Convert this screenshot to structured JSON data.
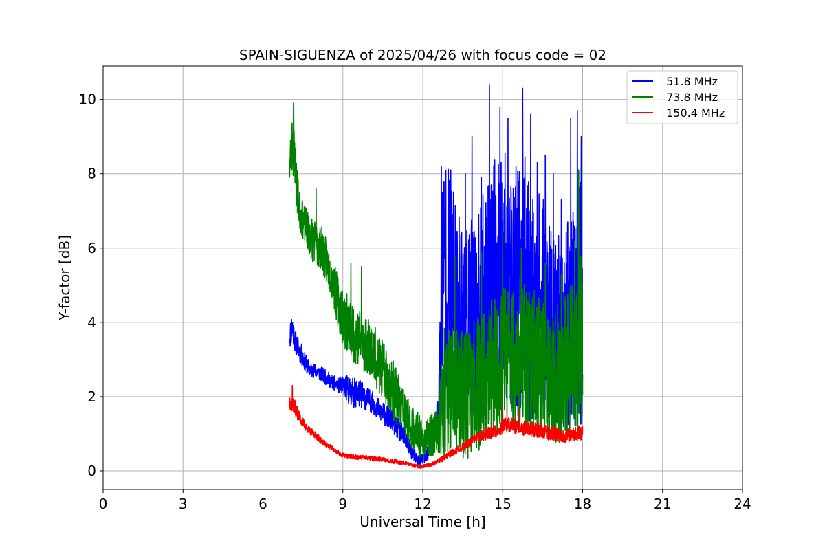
{
  "chart_data": {
    "type": "line",
    "title": "SPAIN-SIGUENZA of 2025/04/26 with focus code = 02",
    "xlabel": "Universal Time [h]",
    "ylabel": "Y-factor [dB]",
    "xlim": [
      0,
      24
    ],
    "ylim": [
      -0.5,
      10.9
    ],
    "xticks": [
      0,
      3,
      6,
      9,
      12,
      15,
      18,
      21,
      24
    ],
    "xtick_labels": [
      "0",
      "3",
      "6",
      "9",
      "12",
      "15",
      "18",
      "21",
      "24"
    ],
    "yticks": [
      0,
      2,
      4,
      6,
      8,
      10
    ],
    "ytick_labels": [
      "0",
      "2",
      "4",
      "6",
      "8",
      "10"
    ],
    "grid": true,
    "legend_position": "top-right",
    "series": [
      {
        "name": " 51.8 MHz",
        "color": "#0000ff",
        "x": [
          7.0,
          7.1,
          7.2,
          7.4,
          7.6,
          7.8,
          8.0,
          8.2,
          8.4,
          8.6,
          8.8,
          9.0,
          9.2,
          9.4,
          9.6,
          9.8,
          10.0,
          10.2,
          10.4,
          10.6,
          10.8,
          11.0,
          11.2,
          11.4,
          11.6,
          11.8,
          12.0,
          12.2,
          12.4,
          12.6,
          12.7,
          12.8,
          13.0,
          13.2,
          13.4,
          13.6,
          13.8,
          14.0,
          14.2,
          14.4,
          14.6,
          14.8,
          15.0,
          15.2,
          15.4,
          15.6,
          15.8,
          16.0,
          16.2,
          16.4,
          16.6,
          16.8,
          17.0,
          17.2,
          17.4,
          17.6,
          17.8,
          18.0
        ],
        "y": [
          3.6,
          3.9,
          3.5,
          3.2,
          2.9,
          2.7,
          2.7,
          2.6,
          2.5,
          2.4,
          2.3,
          2.3,
          2.2,
          2.1,
          2.1,
          2.0,
          1.9,
          1.8,
          1.6,
          1.5,
          1.4,
          1.2,
          1.0,
          0.8,
          0.5,
          0.3,
          0.3,
          0.5,
          1.0,
          1.6,
          5.0,
          5.5,
          5.2,
          4.6,
          4.4,
          4.0,
          4.2,
          3.9,
          4.3,
          4.6,
          4.8,
          5.1,
          5.5,
          5.0,
          4.6,
          4.9,
          5.3,
          4.5,
          4.3,
          4.7,
          4.4,
          3.9,
          3.8,
          3.7,
          3.9,
          4.2,
          4.6,
          4.3
        ],
        "amplitude": [
          0.3,
          0.5,
          0.3,
          0.3,
          0.25,
          0.2,
          0.2,
          0.2,
          0.2,
          0.2,
          0.2,
          0.25,
          0.4,
          0.4,
          0.4,
          0.35,
          0.3,
          0.3,
          0.3,
          0.3,
          0.3,
          0.3,
          0.3,
          0.3,
          0.2,
          0.15,
          0.15,
          0.2,
          0.4,
          0.6,
          3.0,
          3.2,
          3.0,
          2.8,
          2.6,
          2.6,
          2.6,
          2.7,
          3.0,
          3.2,
          3.4,
          3.6,
          3.4,
          3.2,
          3.2,
          3.4,
          3.4,
          3.2,
          3.0,
          2.8,
          2.8,
          2.6,
          2.6,
          2.6,
          2.8,
          3.0,
          3.4,
          3.3
        ],
        "peaks": [
          [
            12.7,
            8.2
          ],
          [
            13.05,
            8.1
          ],
          [
            13.6,
            8.0
          ],
          [
            13.85,
            9.0
          ],
          [
            14.2,
            7.9
          ],
          [
            14.5,
            10.4
          ],
          [
            14.9,
            9.8
          ],
          [
            15.2,
            9.5
          ],
          [
            15.5,
            8.2
          ],
          [
            15.75,
            10.3
          ],
          [
            16.05,
            9.6
          ],
          [
            16.3,
            8.3
          ],
          [
            16.6,
            8.5
          ],
          [
            16.9,
            8.0
          ],
          [
            17.2,
            7.3
          ],
          [
            17.55,
            9.5
          ],
          [
            17.8,
            9.7
          ],
          [
            17.95,
            9.0
          ]
        ]
      },
      {
        "name": " 73.8 MHz",
        "color": "#008000",
        "x": [
          7.0,
          7.1,
          7.2,
          7.3,
          7.4,
          7.6,
          7.8,
          8.0,
          8.2,
          8.4,
          8.6,
          8.8,
          9.0,
          9.2,
          9.4,
          9.6,
          9.8,
          10.0,
          10.2,
          10.4,
          10.6,
          10.8,
          11.0,
          11.2,
          11.4,
          11.6,
          11.8,
          12.0,
          12.2,
          12.4,
          12.6,
          12.8,
          13.0,
          13.2,
          13.4,
          13.6,
          13.8,
          14.0,
          14.2,
          14.4,
          14.6,
          14.8,
          15.0,
          15.2,
          15.4,
          15.6,
          15.8,
          16.0,
          16.2,
          16.4,
          16.6,
          16.8,
          17.0,
          17.2,
          17.4,
          17.6,
          17.8,
          18.0
        ],
        "y": [
          8.2,
          8.9,
          8.4,
          7.4,
          6.9,
          6.6,
          6.3,
          6.1,
          6.0,
          5.6,
          5.2,
          4.6,
          4.2,
          3.9,
          3.7,
          3.6,
          3.4,
          3.4,
          3.1,
          2.8,
          2.6,
          2.3,
          2.0,
          1.7,
          1.4,
          1.2,
          1.0,
          0.8,
          0.9,
          1.0,
          1.2,
          2.2,
          2.3,
          2.1,
          2.0,
          2.1,
          2.2,
          2.3,
          2.4,
          2.5,
          2.7,
          2.8,
          3.2,
          3.1,
          3.0,
          3.0,
          3.1,
          3.0,
          2.9,
          2.8,
          2.8,
          2.7,
          2.6,
          2.7,
          2.8,
          3.0,
          3.3,
          3.5
        ],
        "amplitude": [
          0.6,
          0.9,
          0.7,
          0.6,
          0.5,
          0.5,
          0.6,
          0.6,
          0.6,
          0.6,
          0.6,
          0.7,
          0.8,
          0.8,
          0.8,
          0.8,
          0.8,
          0.8,
          0.8,
          0.8,
          0.8,
          0.8,
          0.8,
          0.7,
          0.6,
          0.6,
          0.6,
          0.5,
          0.5,
          0.6,
          0.7,
          1.8,
          1.8,
          1.8,
          1.8,
          1.8,
          1.8,
          1.8,
          1.9,
          1.9,
          2.0,
          2.0,
          2.1,
          2.0,
          2.0,
          2.0,
          2.0,
          2.0,
          2.0,
          1.9,
          1.9,
          1.9,
          1.9,
          1.9,
          2.0,
          2.1,
          2.3,
          2.5
        ],
        "peaks": [
          [
            7.15,
            9.9
          ],
          [
            8.0,
            7.6
          ],
          [
            9.3,
            5.6
          ],
          [
            9.7,
            5.5
          ],
          [
            13.2,
            5.8
          ],
          [
            14.2,
            5.9
          ],
          [
            15.0,
            6.5
          ],
          [
            15.7,
            6.0
          ],
          [
            16.6,
            5.6
          ],
          [
            17.2,
            5.3
          ],
          [
            17.7,
            6.2
          ],
          [
            17.85,
            8.1
          ]
        ]
      },
      {
        "name": " 150.4 MHz",
        "color": "#ff0000",
        "x": [
          7.0,
          7.2,
          7.4,
          7.6,
          7.8,
          8.0,
          8.2,
          8.4,
          8.6,
          8.8,
          9.0,
          9.2,
          9.4,
          9.6,
          9.8,
          10.0,
          10.2,
          10.4,
          10.6,
          10.8,
          11.0,
          11.2,
          11.4,
          11.6,
          11.8,
          12.0,
          12.2,
          12.4,
          12.6,
          12.8,
          13.0,
          13.2,
          13.4,
          13.6,
          13.8,
          14.0,
          14.2,
          14.4,
          14.6,
          14.8,
          15.0,
          15.2,
          15.4,
          15.6,
          15.8,
          16.0,
          16.2,
          16.4,
          16.6,
          16.8,
          17.0,
          17.2,
          17.4,
          17.6,
          17.8,
          18.0
        ],
        "y": [
          1.9,
          1.7,
          1.4,
          1.2,
          1.05,
          0.95,
          0.8,
          0.7,
          0.6,
          0.5,
          0.42,
          0.4,
          0.38,
          0.36,
          0.36,
          0.34,
          0.32,
          0.32,
          0.3,
          0.27,
          0.25,
          0.22,
          0.2,
          0.15,
          0.12,
          0.12,
          0.15,
          0.2,
          0.28,
          0.35,
          0.45,
          0.52,
          0.6,
          0.68,
          0.78,
          0.88,
          0.95,
          1.0,
          1.05,
          1.1,
          1.2,
          1.25,
          1.2,
          1.2,
          1.15,
          1.15,
          1.1,
          1.1,
          1.05,
          1.0,
          1.0,
          0.95,
          0.95,
          1.0,
          1.0,
          1.05
        ],
        "amplitude": [
          0.25,
          0.2,
          0.15,
          0.12,
          0.1,
          0.1,
          0.08,
          0.08,
          0.07,
          0.06,
          0.06,
          0.06,
          0.06,
          0.06,
          0.06,
          0.06,
          0.06,
          0.06,
          0.06,
          0.06,
          0.06,
          0.05,
          0.05,
          0.05,
          0.05,
          0.05,
          0.05,
          0.06,
          0.07,
          0.08,
          0.1,
          0.1,
          0.1,
          0.12,
          0.12,
          0.14,
          0.15,
          0.16,
          0.18,
          0.2,
          0.2,
          0.22,
          0.2,
          0.2,
          0.2,
          0.2,
          0.2,
          0.2,
          0.2,
          0.2,
          0.2,
          0.2,
          0.2,
          0.2,
          0.2,
          0.22
        ],
        "peaks": [
          [
            7.1,
            2.3
          ],
          [
            15.0,
            1.8
          ],
          [
            15.6,
            1.6
          ]
        ]
      }
    ]
  }
}
